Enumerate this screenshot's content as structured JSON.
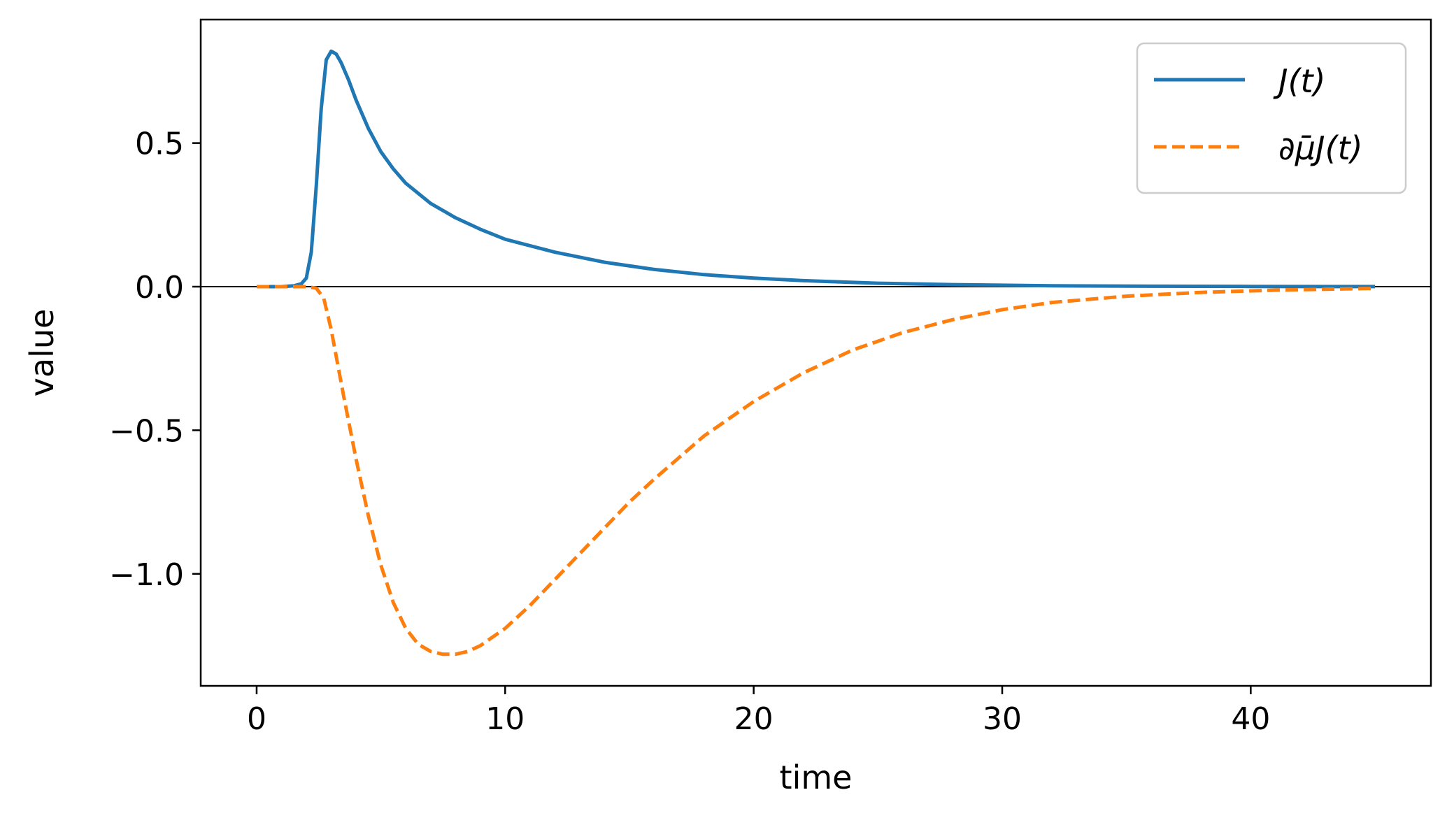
{
  "chart_data": {
    "type": "line",
    "title": "",
    "xlabel": "time",
    "ylabel": "value",
    "xlim": [
      -2.25,
      47.25
    ],
    "ylim": [
      -1.39,
      0.93
    ],
    "xticks": [
      0,
      10,
      20,
      30,
      40
    ],
    "xtick_labels": [
      "0",
      "10",
      "20",
      "30",
      "40"
    ],
    "yticks": [
      0.5,
      0.0,
      -0.5,
      -1.0
    ],
    "ytick_labels": [
      "0.5",
      "0.0",
      "−0.5",
      "−1.0"
    ],
    "grid": false,
    "zero_line": true,
    "legend_position": "top-right",
    "series": [
      {
        "name": "J(t)",
        "color": "#1f77b4",
        "style": "solid",
        "x": [
          0,
          0.5,
          1.0,
          1.5,
          1.8,
          2.0,
          2.2,
          2.4,
          2.6,
          2.8,
          3.0,
          3.2,
          3.4,
          3.7,
          4.0,
          4.5,
          5.0,
          5.5,
          6.0,
          7.0,
          8.0,
          9.0,
          10.0,
          12.0,
          14.0,
          16.0,
          18.0,
          20.0,
          22.0,
          25.0,
          28.0,
          32.0,
          36.0,
          40.0,
          45.0
        ],
        "y": [
          0.0,
          0.0,
          0.0,
          0.003,
          0.01,
          0.03,
          0.12,
          0.35,
          0.62,
          0.79,
          0.82,
          0.81,
          0.78,
          0.72,
          0.65,
          0.55,
          0.47,
          0.41,
          0.36,
          0.29,
          0.24,
          0.2,
          0.165,
          0.12,
          0.085,
          0.06,
          0.042,
          0.03,
          0.021,
          0.012,
          0.007,
          0.003,
          0.0015,
          0.0007,
          0.0002
        ]
      },
      {
        "name": "∂μ̄J(t)",
        "color": "#ff7f0e",
        "style": "dashed",
        "x": [
          0,
          1.0,
          2.0,
          2.4,
          2.7,
          3.0,
          3.5,
          4.0,
          4.5,
          5.0,
          5.5,
          6.0,
          6.5,
          7.0,
          7.5,
          8.0,
          8.5,
          9.0,
          10.0,
          11.0,
          12.0,
          13.0,
          14.0,
          15.0,
          16.0,
          18.0,
          20.0,
          22.0,
          24.0,
          26.0,
          28.0,
          30.0,
          32.0,
          35.0,
          38.0,
          41.0,
          45.0
        ],
        "y": [
          0.0,
          0.0,
          0.0,
          -0.005,
          -0.04,
          -0.15,
          -0.38,
          -0.6,
          -0.8,
          -0.97,
          -1.1,
          -1.19,
          -1.245,
          -1.27,
          -1.28,
          -1.28,
          -1.27,
          -1.25,
          -1.19,
          -1.11,
          -1.02,
          -0.93,
          -0.84,
          -0.75,
          -0.67,
          -0.52,
          -0.4,
          -0.3,
          -0.22,
          -0.16,
          -0.115,
          -0.08,
          -0.055,
          -0.033,
          -0.02,
          -0.012,
          -0.006
        ]
      }
    ]
  },
  "legend": {
    "items": [
      {
        "label": "J(t)"
      },
      {
        "label": "∂μ̄J(t)"
      }
    ]
  }
}
